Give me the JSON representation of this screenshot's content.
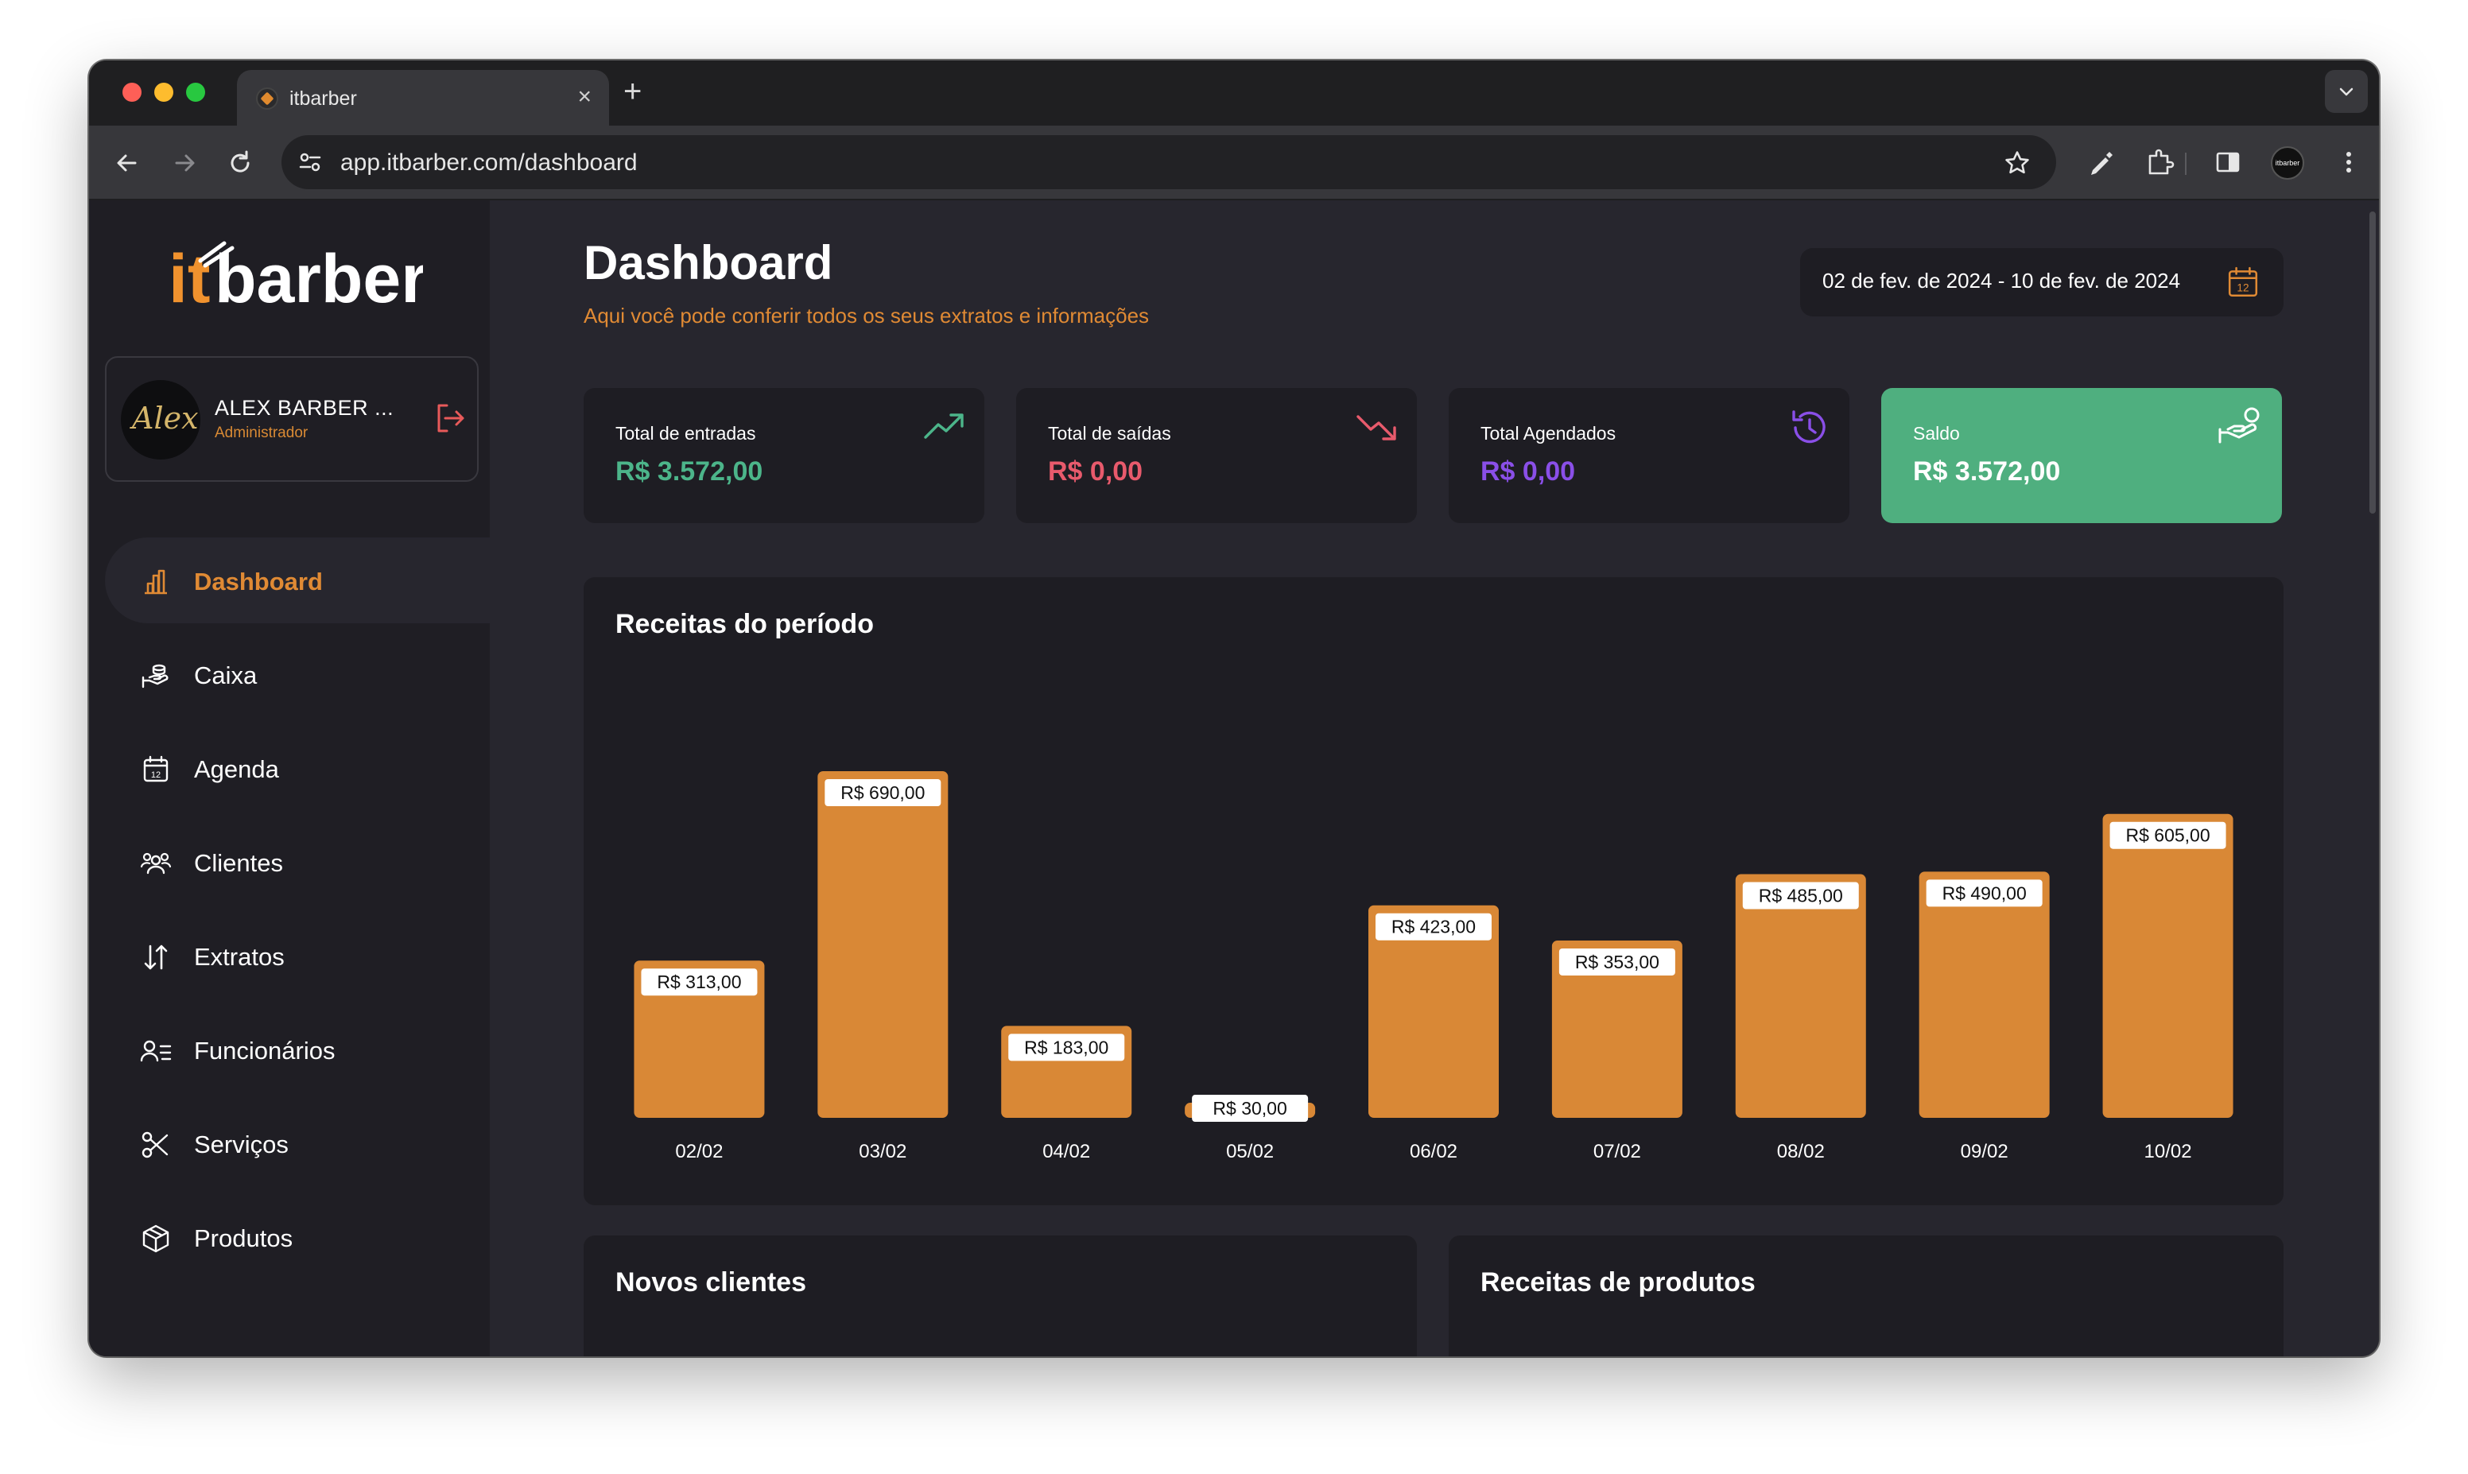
{
  "browser": {
    "tab_title": "itbarber",
    "url": "app.itbarber.com/dashboard",
    "new_tab_label": "+",
    "close_label": "×",
    "profile_label": "itbarber"
  },
  "sidebar": {
    "brand": "itbarber",
    "user": {
      "name": "ALEX BARBER ...",
      "role": "Administrador",
      "avatar_text": "Alex"
    },
    "items": [
      {
        "label": "Dashboard",
        "icon": "bar-chart-icon",
        "active": true
      },
      {
        "label": "Caixa",
        "icon": "hand-coins-icon",
        "active": false
      },
      {
        "label": "Agenda",
        "icon": "calendar-icon",
        "active": false
      },
      {
        "label": "Clientes",
        "icon": "users-icon",
        "active": false
      },
      {
        "label": "Extratos",
        "icon": "sort-arrows-icon",
        "active": false
      },
      {
        "label": "Funcionários",
        "icon": "user-list-icon",
        "active": false
      },
      {
        "label": "Serviços",
        "icon": "scissors-icon",
        "active": false
      },
      {
        "label": "Produtos",
        "icon": "box-icon",
        "active": false
      }
    ]
  },
  "header": {
    "title": "Dashboard",
    "subtitle": "Aqui você pode conferir todos os seus extratos e informações",
    "date_range": "02 de fev. de 2024 - 10 de fev. de 2024",
    "date_icon_day": "12"
  },
  "cards": [
    {
      "label": "Total de entradas",
      "value": "R$ 3.572,00",
      "color": "#4cb58a",
      "icon": "trending-up-icon"
    },
    {
      "label": "Total de saídas",
      "value": "R$ 0,00",
      "color": "#e85a6c",
      "icon": "trending-down-icon"
    },
    {
      "label": "Total Agendados",
      "value": "R$ 0,00",
      "color": "#8a4fe8",
      "icon": "history-icon"
    },
    {
      "label": "Saldo",
      "value": "R$ 3.572,00",
      "color": "#ffffff",
      "bg": "#4faf7f",
      "icon": "hand-money-icon"
    }
  ],
  "chart_data": {
    "type": "bar",
    "title": "Receitas do período",
    "categories": [
      "02/02",
      "03/02",
      "04/02",
      "05/02",
      "06/02",
      "07/02",
      "08/02",
      "09/02",
      "10/02"
    ],
    "values": [
      313,
      690,
      183,
      30,
      423,
      353,
      485,
      490,
      605
    ],
    "data_labels": [
      "R$ 313,00",
      "R$ 690,00",
      "R$ 183,00",
      "R$ 30,00",
      "R$ 423,00",
      "R$ 353,00",
      "R$ 485,00",
      "R$ 490,00",
      "R$ 605,00"
    ],
    "ylim": [
      0,
      690
    ],
    "grid": false,
    "bar_color": "#d98836"
  },
  "panels": {
    "new_clients": "Novos clientes",
    "product_revenue": "Receitas de produtos"
  },
  "theme": {
    "accent": "#e08a34",
    "background": "#27262e",
    "panel": "#1e1d23"
  }
}
